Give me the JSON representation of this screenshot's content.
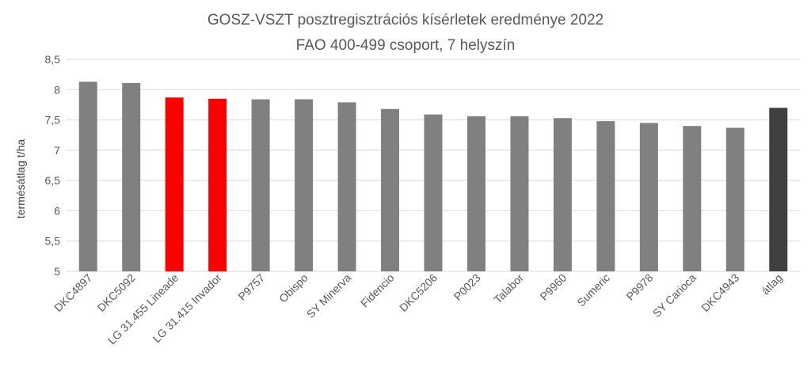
{
  "chart_data": {
    "type": "bar",
    "title": "GOSZ-VSZT posztregisztrációs kísérletek eredménye 2022",
    "subtitle": "FAO 400-499 csoport, 7 helyszín",
    "xlabel": "",
    "ylabel": "termésátlag t/ha",
    "ylim": [
      5,
      8.5
    ],
    "yticks": [
      "5",
      "5,5",
      "6",
      "6,5",
      "7",
      "7,5",
      "8",
      "8,5"
    ],
    "grid": true,
    "legend": "none",
    "categories": [
      "DKC4897",
      "DKC5092",
      "LG 31.455 Lineade",
      "LG 31.415 Invador",
      "P9757",
      "Obispo",
      "SY Minerva",
      "Fidencio",
      "DKC5206",
      "P0023",
      "Talabor",
      "P9960",
      "Sumeric",
      "P9978",
      "SY Carioca",
      "DKC4943",
      "átlag"
    ],
    "values": [
      8.13,
      8.11,
      7.87,
      7.85,
      7.84,
      7.84,
      7.79,
      7.68,
      7.59,
      7.56,
      7.56,
      7.53,
      7.48,
      7.45,
      7.4,
      7.37,
      7.7
    ],
    "colors": [
      "#808080",
      "#808080",
      "#ff0000",
      "#ff0000",
      "#808080",
      "#808080",
      "#808080",
      "#808080",
      "#808080",
      "#808080",
      "#808080",
      "#808080",
      "#808080",
      "#808080",
      "#808080",
      "#808080",
      "#404040"
    ]
  }
}
